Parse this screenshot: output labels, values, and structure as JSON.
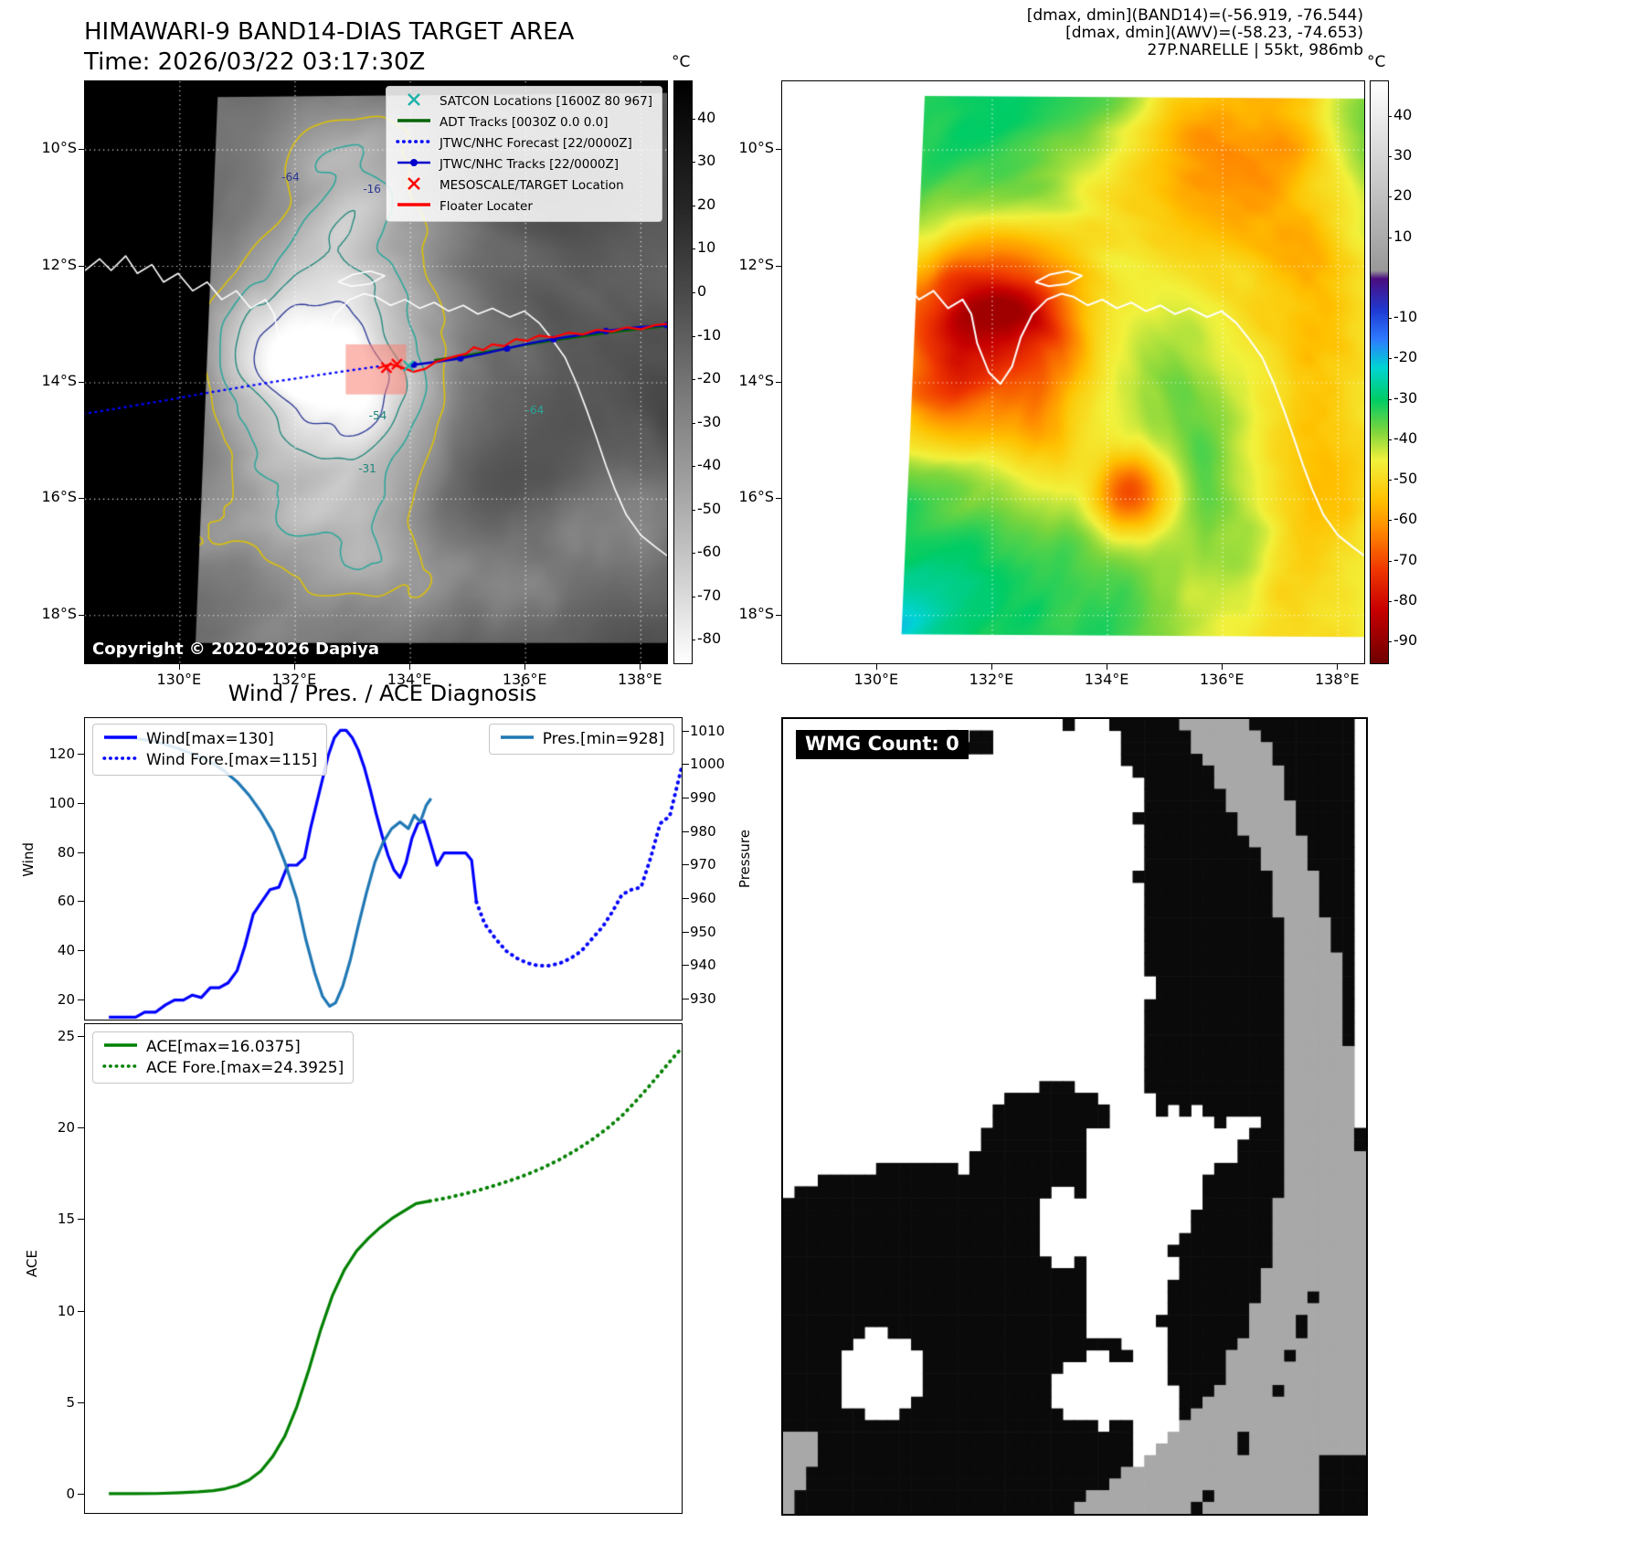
{
  "panel_tl": {
    "title": "HIMAWARI-9 BAND14-DIAS TARGET AREA",
    "subtitle": "Time: 2026/03/22 03:17:30Z",
    "copyright": "Copyright © 2020-2026 Dapiya",
    "colorbar_unit": "°C",
    "colorbar_ticks": [
      40,
      30,
      20,
      10,
      0,
      -10,
      -20,
      -30,
      -40,
      -50,
      -60,
      -70,
      -80
    ],
    "colorbar_stops": [
      [
        48.8,
        "#000000"
      ],
      [
        20,
        "#262626"
      ],
      [
        0,
        "#4a4a4a"
      ],
      [
        -20,
        "#737373"
      ],
      [
        -45,
        "#a3a3a3"
      ],
      [
        -65,
        "#cfcfcf"
      ],
      [
        -85.2,
        "#ffffff"
      ]
    ],
    "lat_ticks": [
      "10°S",
      "12°S",
      "14°S",
      "16°S",
      "18°S"
    ],
    "lon_ticks": [
      "130°E",
      "132°E",
      "134°E",
      "136°E",
      "138°E"
    ],
    "target_box_color": "#fa8072",
    "legend": [
      {
        "label": "SATCON Locations [1600Z 80 967]",
        "glyph": "x",
        "color": "#20b2aa",
        "icon": "satcon-x-icon"
      },
      {
        "label": "ADT Tracks [0030Z 0.0 0.0]",
        "glyph": "solid",
        "color": "#006400",
        "icon": "adt-track-icon"
      },
      {
        "label": "JTWC/NHC Forecast [22/0000Z]",
        "glyph": "dotted",
        "color": "#0000ff",
        "icon": "jtwc-forecast-icon"
      },
      {
        "label": "JTWC/NHC Tracks [22/0000Z]",
        "glyph": "line-dot",
        "color": "#0000cd",
        "icon": "jtwc-track-icon"
      },
      {
        "label": "MESOSCALE/TARGET Location",
        "glyph": "x",
        "color": "#ff0000",
        "icon": "target-x-icon"
      },
      {
        "label": "Floater Locater",
        "glyph": "solid",
        "color": "#ff0000",
        "icon": "floater-icon"
      }
    ],
    "contour_labels": [
      {
        "text": "-64",
        "u": 0.355,
        "v": 0.165,
        "color": "#283593"
      },
      {
        "text": "-16",
        "u": 0.495,
        "v": 0.185,
        "color": "#283593"
      },
      {
        "text": "-54",
        "u": 0.505,
        "v": 0.575,
        "color": "#1b8578"
      },
      {
        "text": "-31",
        "u": 0.487,
        "v": 0.665,
        "color": "#1b8578"
      },
      {
        "text": "-64",
        "u": 0.775,
        "v": 0.565,
        "color": "#26a69a"
      }
    ]
  },
  "panel_tr": {
    "header_lines": [
      "[dmax, dmin](BAND14)=(-56.919, -76.544)",
      "[dmax, dmin](AWV)=(-58.23, -74.653)",
      "27P.NARELLE | 55kt, 986mb"
    ],
    "colorbar_unit": "°C",
    "colorbar_ticks": [
      40,
      30,
      20,
      10,
      -10,
      -20,
      -30,
      -40,
      -50,
      -60,
      -70,
      -80,
      -90
    ],
    "colorbar_stops": [
      [
        48.8,
        "#ffffff"
      ],
      [
        2,
        "#999999"
      ],
      [
        0,
        "#4b0d7f"
      ],
      [
        -8,
        "#1f3bd4"
      ],
      [
        -15,
        "#2e7bff"
      ],
      [
        -22,
        "#00d4d4"
      ],
      [
        -30,
        "#00cc66"
      ],
      [
        -38,
        "#7fd63c"
      ],
      [
        -45,
        "#f2f23c"
      ],
      [
        -55,
        "#ffc100"
      ],
      [
        -62,
        "#ff8c00"
      ],
      [
        -72,
        "#f03800"
      ],
      [
        -82,
        "#c80000"
      ],
      [
        -95.2,
        "#700000"
      ]
    ],
    "lat_ticks": [
      "10°S",
      "12°S",
      "14°S",
      "16°S",
      "18°S"
    ],
    "lon_ticks": [
      "130°E",
      "132°E",
      "134°E",
      "136°E",
      "138°E"
    ]
  },
  "panel_bl": {
    "title": "Wind / Pres. / ACE Diagnosis"
  },
  "panel_br": {
    "wmg_label": "WMG Count: 0"
  },
  "chart_data": [
    {
      "type": "line",
      "title": "Wind / Pres. / ACE Diagnosis",
      "ylabel_left": "Wind",
      "ylabel_right": "Pressure",
      "ylim_left": [
        12,
        135
      ],
      "ylim_right": [
        924,
        1014
      ],
      "yticks_left": [
        20,
        40,
        60,
        80,
        100,
        120
      ],
      "yticks_right": [
        930,
        940,
        950,
        960,
        970,
        980,
        990,
        1000,
        1010
      ],
      "xlim": [
        0,
        1
      ],
      "grid": false,
      "legend_positions": {
        "wind": "upper-left",
        "pressure": "upper-right"
      },
      "series": [
        {
          "name": "Wind[max=130]",
          "axis": "left",
          "style": "solid",
          "color": "#0000ff",
          "x": [
            0.04,
            0.062,
            0.085,
            0.1,
            0.118,
            0.135,
            0.15,
            0.165,
            0.18,
            0.195,
            0.21,
            0.225,
            0.24,
            0.255,
            0.268,
            0.282,
            0.296,
            0.31,
            0.325,
            0.34,
            0.355,
            0.368,
            0.378,
            0.388,
            0.398,
            0.408,
            0.418,
            0.428,
            0.438,
            0.448,
            0.458,
            0.468,
            0.478,
            0.488,
            0.498,
            0.508,
            0.518,
            0.528,
            0.538,
            0.548,
            0.558,
            0.568,
            0.578,
            0.59,
            0.602,
            0.614,
            0.626,
            0.638,
            0.648,
            0.656
          ],
          "y": [
            13,
            13,
            13,
            15,
            15,
            18,
            20,
            20,
            22,
            21,
            25,
            25,
            27,
            32,
            42,
            55,
            60,
            65,
            66,
            75,
            75,
            78,
            90,
            100,
            110,
            120,
            127,
            130,
            130,
            127,
            122,
            115,
            106,
            96,
            87,
            79,
            73,
            70,
            76,
            86,
            92,
            93,
            85,
            75,
            80,
            80,
            80,
            80,
            77,
            60
          ]
        },
        {
          "name": "Wind Fore.[max=115]",
          "axis": "left",
          "style": "dotted",
          "color": "#0000ff",
          "x": [
            0.656,
            0.67,
            0.688,
            0.706,
            0.724,
            0.742,
            0.76,
            0.778,
            0.796,
            0.814,
            0.832,
            0.85,
            0.868,
            0.884,
            0.9,
            0.916,
            0.932,
            0.948,
            0.964,
            0.98,
            1.0
          ],
          "y": [
            60,
            51,
            45,
            40,
            37,
            35,
            34,
            34,
            35,
            37,
            40,
            45,
            50,
            56,
            63,
            65,
            66,
            78,
            92,
            95,
            115
          ]
        },
        {
          "name": "Pres.[min=928]",
          "axis": "right",
          "style": "solid",
          "color": "#1f77b4",
          "x": [
            0.04,
            0.08,
            0.12,
            0.155,
            0.185,
            0.21,
            0.235,
            0.255,
            0.275,
            0.295,
            0.315,
            0.335,
            0.355,
            0.37,
            0.385,
            0.398,
            0.41,
            0.42,
            0.432,
            0.445,
            0.458,
            0.472,
            0.486,
            0.5,
            0.514,
            0.528,
            0.542,
            0.552,
            0.562,
            0.572,
            0.58
          ],
          "y": [
            1008,
            1008,
            1007,
            1005,
            1003,
            1001,
            998,
            995,
            991,
            986,
            980,
            971,
            960,
            948,
            938,
            931,
            928,
            929,
            934,
            942,
            952,
            962,
            971,
            977,
            981,
            983,
            981,
            985,
            983,
            988,
            990
          ]
        }
      ]
    },
    {
      "type": "line",
      "ylabel_left": "ACE",
      "ylim_left": [
        -1,
        25.7
      ],
      "yticks_left": [
        0,
        5,
        10,
        15,
        20,
        25
      ],
      "xlim": [
        0,
        1
      ],
      "grid": false,
      "series": [
        {
          "name": "ACE[max=16.0375]",
          "axis": "left",
          "style": "solid",
          "color": "#008000",
          "x": [
            0.04,
            0.08,
            0.12,
            0.16,
            0.19,
            0.215,
            0.235,
            0.255,
            0.275,
            0.295,
            0.315,
            0.335,
            0.355,
            0.375,
            0.395,
            0.415,
            0.435,
            0.455,
            0.475,
            0.495,
            0.515,
            0.535,
            0.555,
            0.578
          ],
          "y": [
            0.05,
            0.05,
            0.06,
            0.1,
            0.15,
            0.22,
            0.32,
            0.5,
            0.8,
            1.3,
            2.1,
            3.2,
            4.8,
            6.8,
            9.0,
            10.9,
            12.3,
            13.3,
            14.0,
            14.6,
            15.1,
            15.5,
            15.9,
            16.04
          ]
        },
        {
          "name": "ACE Fore.[max=24.3925]",
          "axis": "left",
          "style": "dotted",
          "color": "#008000",
          "x": [
            0.578,
            0.605,
            0.632,
            0.659,
            0.686,
            0.713,
            0.74,
            0.767,
            0.794,
            0.821,
            0.848,
            0.875,
            0.9,
            0.922,
            0.944,
            0.966,
            0.984,
            1.0
          ],
          "y": [
            16.04,
            16.2,
            16.4,
            16.62,
            16.88,
            17.16,
            17.48,
            17.85,
            18.28,
            18.78,
            19.35,
            20.0,
            20.7,
            21.45,
            22.25,
            23.1,
            23.8,
            24.39
          ]
        }
      ]
    }
  ]
}
